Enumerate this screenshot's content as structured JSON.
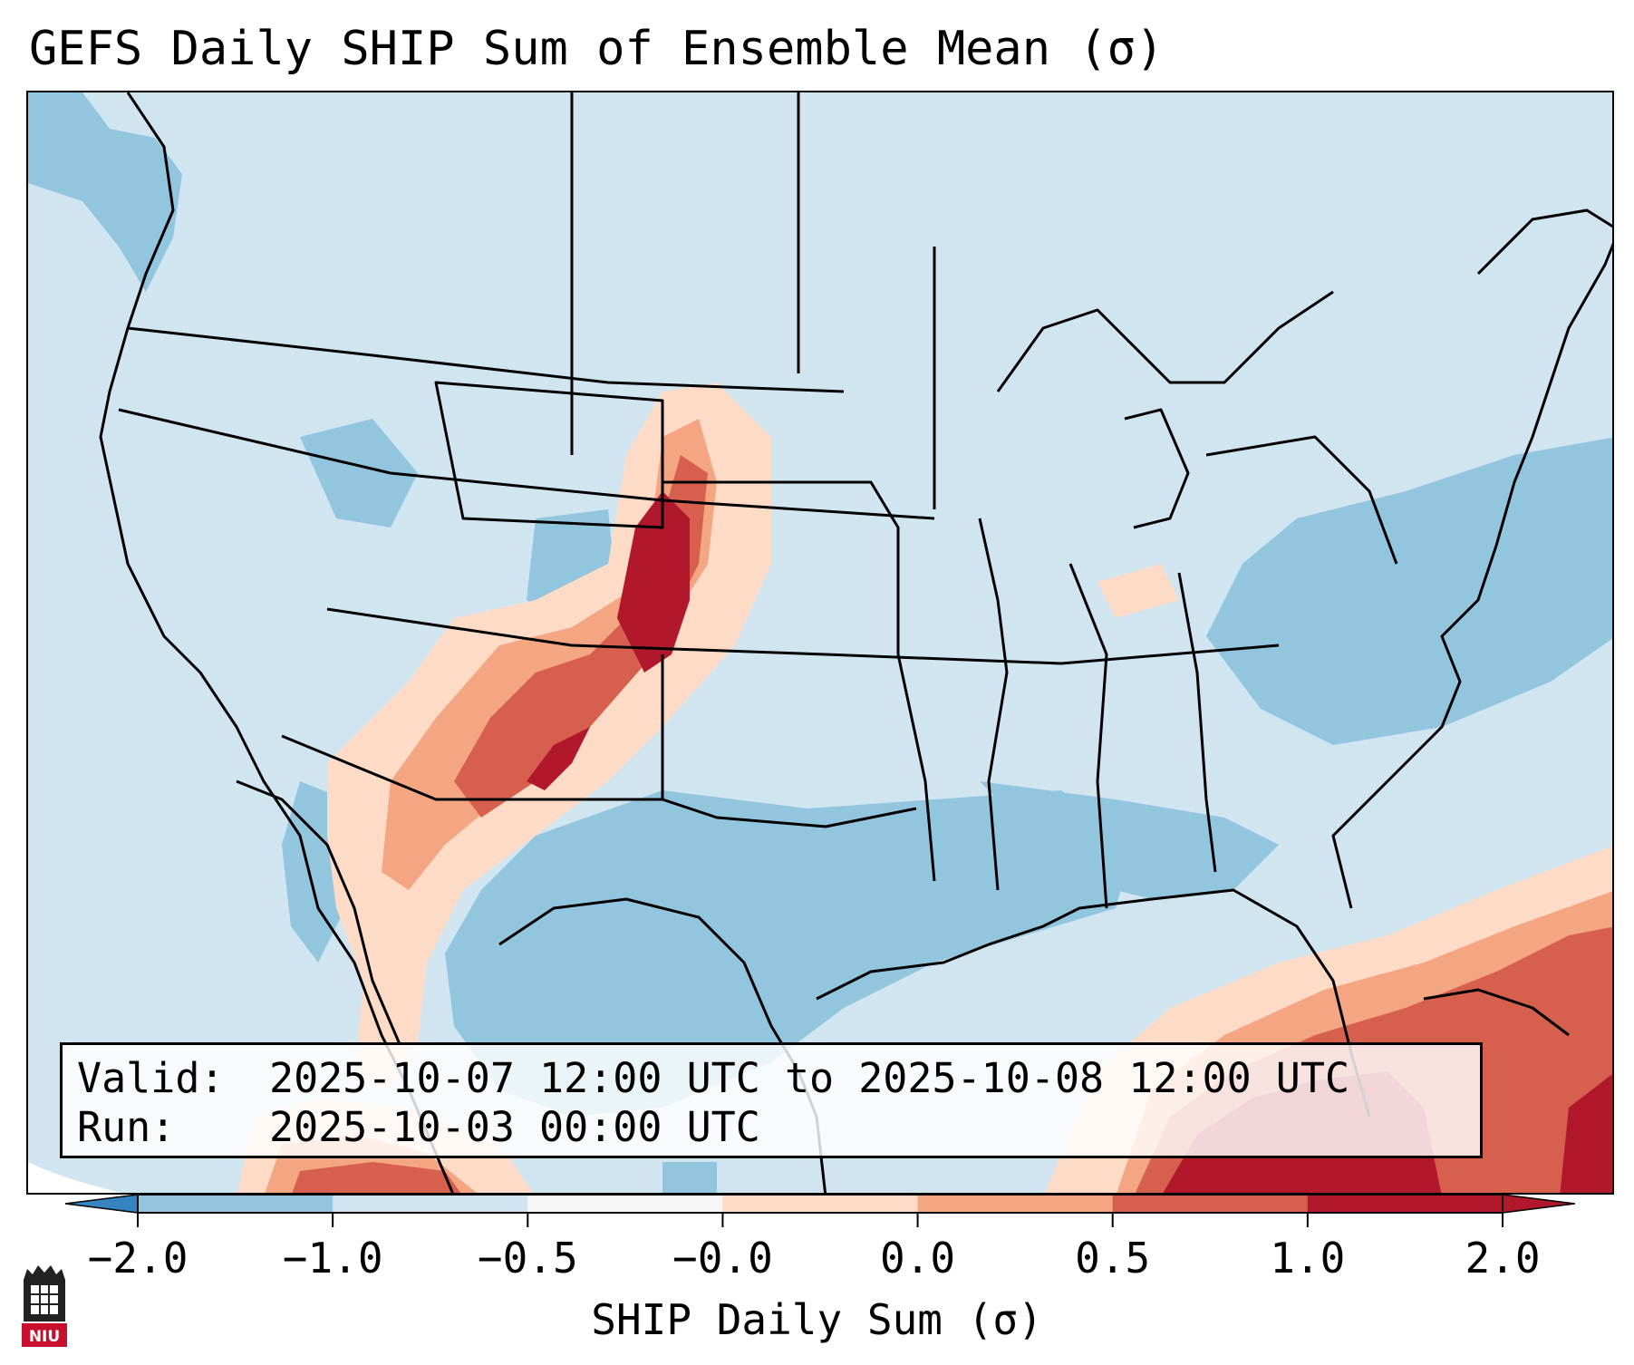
{
  "title": "GEFS Daily SHIP Sum of Ensemble Mean (σ)",
  "valid_label": "Valid:",
  "valid_value": "2025-10-07 12:00 UTC to 2025-10-08 12:00 UTC",
  "run_label": "Run:",
  "run_value": "2025-10-03 00:00 UTC",
  "colorbar": {
    "label": "SHIP Daily Sum (σ)",
    "ticks": [
      "−2.0",
      "−1.0",
      "−0.5",
      "−0.0",
      "0.0",
      "0.5",
      "1.0",
      "2.0"
    ],
    "colors": [
      "#3584bf",
      "#92c5de",
      "#d1e5f0",
      "#f7f7f7",
      "#fddbc7",
      "#f4a582",
      "#d6604d",
      "#b2182b"
    ],
    "extend": "both"
  },
  "logo": {
    "text": "NIU",
    "icon": "niu-logo-icon"
  }
}
